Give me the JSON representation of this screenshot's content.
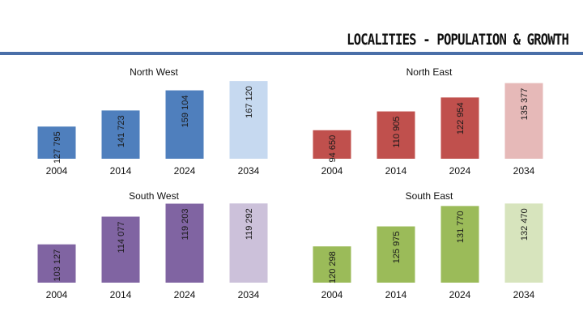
{
  "header": {
    "title": "LOCALITIES - POPULATION & GROWTH"
  },
  "chart_data": [
    {
      "type": "bar",
      "title": "North West",
      "categories": [
        "2004",
        "2014",
        "2024",
        "2034"
      ],
      "values": [
        127795,
        141723,
        159104,
        167120
      ],
      "value_labels": [
        "127 795",
        "141 723",
        "159 104",
        "167 120"
      ],
      "colors": [
        "#4f7fbd",
        "#4f7fbd",
        "#4f7fbd",
        "#c6d9f0"
      ],
      "ylim": [
        100000,
        170000
      ]
    },
    {
      "type": "bar",
      "title": "North East",
      "categories": [
        "2004",
        "2014",
        "2024",
        "2034"
      ],
      "values": [
        94650,
        110905,
        122954,
        135377
      ],
      "value_labels": [
        "94 650",
        "110 905",
        "122 954",
        "135 377"
      ],
      "colors": [
        "#c0504d",
        "#c0504d",
        "#c0504d",
        "#e6b9b8"
      ],
      "ylim": [
        70000,
        140000
      ]
    },
    {
      "type": "bar",
      "title": "South West",
      "categories": [
        "2004",
        "2014",
        "2024",
        "2034"
      ],
      "values": [
        103127,
        114077,
        119203,
        119292
      ],
      "value_labels": [
        "103 127",
        "114 077",
        "119 203",
        "119 292"
      ],
      "colors": [
        "#8064a2",
        "#8064a2",
        "#8064a2",
        "#ccc1da"
      ],
      "ylim": [
        88000,
        120000
      ]
    },
    {
      "type": "bar",
      "title": "South East",
      "categories": [
        "2004",
        "2014",
        "2024",
        "2034"
      ],
      "values": [
        120298,
        125975,
        131770,
        132470
      ],
      "value_labels": [
        "120 298",
        "125 975",
        "131 770",
        "132 470"
      ],
      "colors": [
        "#9bbb59",
        "#9bbb59",
        "#9bbb59",
        "#d7e4bd"
      ],
      "ylim": [
        110000,
        133000
      ]
    }
  ]
}
